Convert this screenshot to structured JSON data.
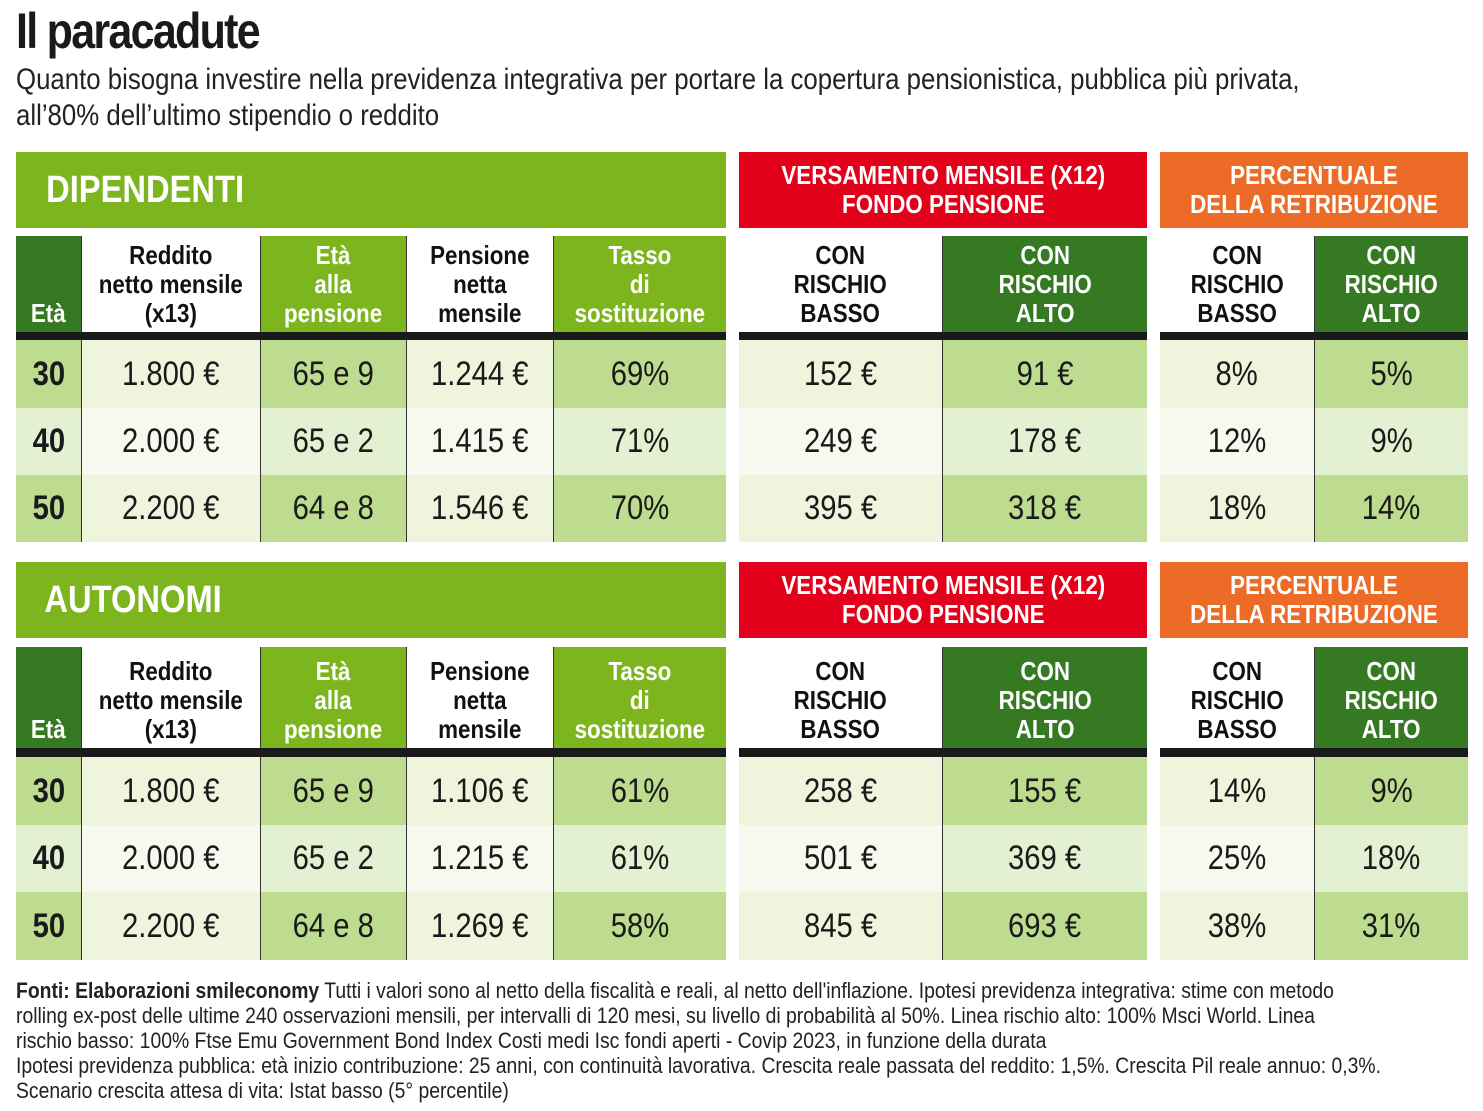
{
  "title": "Il paracadute",
  "subtitle": "Quanto bisogna investire nella previdenza integrativa per portare la copertura pensionistica, pubblica più privata, all’80% dell’ultimo stipendio o reddito",
  "colors": {
    "green": "#7db51f",
    "dark_green": "#357a23",
    "red": "#e2001a",
    "orange": "#ec6b26",
    "light_green": "#bddc8f",
    "pale_green": "#eff5dc"
  },
  "headers": {
    "versamento": "VERSAMENTO MENSILE (X12)\nFONDO PENSIONE",
    "percentuale": "PERCENTUALE\nDELLA RETRIBUZIONE",
    "columns": [
      "Età",
      "Reddito\nnetto mensile\n(x13)",
      "Età\nalla\npensione",
      "Pensione\nnetta\nmensile",
      "Tasso\ndi\nsostituzione"
    ],
    "risk_columns": [
      "CON\nRISCHIO\nBASSO",
      "CON\nRISCHIO\nALTO"
    ]
  },
  "chart_data": {
    "type": "table",
    "title": "Il paracadute",
    "sections": [
      {
        "name": "DIPENDENTI",
        "rows": [
          {
            "eta": "30",
            "reddito": "1.800 €",
            "eta_pensione": "65 e 9",
            "pensione": "1.244 €",
            "tasso": "69%",
            "vers_basso": "152 €",
            "vers_alto": "91 €",
            "perc_basso": "8%",
            "perc_alto": "5%"
          },
          {
            "eta": "40",
            "reddito": "2.000 €",
            "eta_pensione": "65 e 2",
            "pensione": "1.415 €",
            "tasso": "71%",
            "vers_basso": "249 €",
            "vers_alto": "178 €",
            "perc_basso": "12%",
            "perc_alto": "9%"
          },
          {
            "eta": "50",
            "reddito": "2.200 €",
            "eta_pensione": "64 e 8",
            "pensione": "1.546 €",
            "tasso": "70%",
            "vers_basso": "395 €",
            "vers_alto": "318 €",
            "perc_basso": "18%",
            "perc_alto": "14%"
          }
        ]
      },
      {
        "name": "AUTONOMI",
        "rows": [
          {
            "eta": "30",
            "reddito": "1.800 €",
            "eta_pensione": "65 e 9",
            "pensione": "1.106 €",
            "tasso": "61%",
            "vers_basso": "258 €",
            "vers_alto": "155 €",
            "perc_basso": "14%",
            "perc_alto": "9%"
          },
          {
            "eta": "40",
            "reddito": "2.000 €",
            "eta_pensione": "65 e 2",
            "pensione": "1.215 €",
            "tasso": "61%",
            "vers_basso": "501 €",
            "vers_alto": "369 €",
            "perc_basso": "25%",
            "perc_alto": "18%"
          },
          {
            "eta": "50",
            "reddito": "2.200 €",
            "eta_pensione": "64 e 8",
            "pensione": "1.269 €",
            "tasso": "58%",
            "vers_basso": "845 €",
            "vers_alto": "693 €",
            "perc_basso": "38%",
            "perc_alto": "31%"
          }
        ]
      }
    ]
  },
  "notes": {
    "source_label": "Fonti: Elaborazioni smileconomy",
    "text": " Tutti i valori sono al netto della fiscalità e reali, al netto dell'inflazione. Ipotesi previdenza integrativa: stime con metodo\nrolling ex-post delle ultime 240 osservazioni mensili, per intervalli di 120 mesi, su livello di probabilità al 50%. Linea rischio alto: 100% Msci World. Linea\nrischio basso: 100% Ftse Emu Government Bond Index Costi medi Isc fondi aperti - Covip 2023, in funzione della durata\nIpotesi previdenza pubblica: età inizio contribuzione: 25 anni, con continuità lavorativa. Crescita reale passata del reddito: 1,5%. Crescita Pil reale annuo: 0,3%.\nScenario crescita attesa di vita: Istat basso (5° percentile)"
  }
}
